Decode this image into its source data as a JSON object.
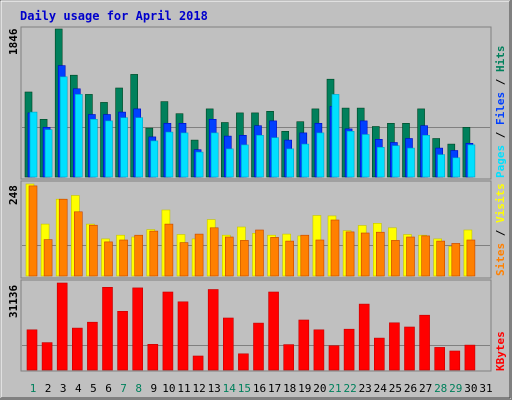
{
  "title": "Daily usage for April 2018",
  "colors": {
    "background": "#c0c0c0",
    "title": "#0000cc",
    "hits": "#00805c",
    "files": "#0040ff",
    "pages": "#00e0ff",
    "visits": "#ffff00",
    "sites": "#ff8000",
    "kbytes": "#ff0000",
    "day_weekend": "#00805c",
    "day_weekday": "#000000"
  },
  "chart_data": [
    {
      "type": "bar",
      "panel": "hits_files_pages",
      "ymax_label": "1846",
      "legend": [
        {
          "label": "Pages",
          "color": "#00e0ff"
        },
        {
          "label": "Files",
          "color": "#0040ff"
        },
        {
          "label": "Hits",
          "color": "#00805c"
        }
      ],
      "categories": [
        "1",
        "2",
        "3",
        "4",
        "5",
        "6",
        "7",
        "8",
        "9",
        "10",
        "11",
        "12",
        "13",
        "14",
        "15",
        "16",
        "17",
        "18",
        "19",
        "20",
        "21",
        "22",
        "23",
        "24",
        "25",
        "26",
        "27",
        "28",
        "29",
        "30",
        "31"
      ],
      "series": [
        {
          "name": "Hits",
          "values": [
            1060,
            720,
            1846,
            1270,
            1030,
            930,
            1110,
            1280,
            610,
            940,
            790,
            460,
            850,
            680,
            800,
            800,
            820,
            570,
            690,
            850,
            1220,
            860,
            860,
            630,
            670,
            670,
            850,
            480,
            410,
            620,
            0
          ]
        },
        {
          "name": "Files",
          "values": [
            800,
            620,
            1390,
            1100,
            780,
            780,
            810,
            850,
            500,
            670,
            670,
            340,
            720,
            510,
            520,
            640,
            700,
            460,
            550,
            670,
            880,
            600,
            700,
            470,
            430,
            480,
            640,
            360,
            330,
            420,
            0
          ]
        },
        {
          "name": "Pages",
          "values": [
            810,
            590,
            1250,
            1030,
            720,
            700,
            740,
            740,
            450,
            560,
            550,
            310,
            550,
            350,
            400,
            520,
            490,
            350,
            410,
            550,
            1030,
            570,
            530,
            370,
            390,
            360,
            520,
            280,
            240,
            400,
            0
          ]
        }
      ]
    },
    {
      "type": "bar",
      "panel": "visits_sites",
      "ymax_label": "248",
      "legend": [
        {
          "label": "Sites",
          "color": "#ff8000"
        },
        {
          "label": "Visits",
          "color": "#ffff00"
        }
      ],
      "categories": [
        "1",
        "2",
        "3",
        "4",
        "5",
        "6",
        "7",
        "8",
        "9",
        "10",
        "11",
        "12",
        "13",
        "14",
        "15",
        "16",
        "17",
        "18",
        "19",
        "20",
        "21",
        "22",
        "23",
        "24",
        "25",
        "26",
        "27",
        "28",
        "29",
        "30",
        "31"
      ],
      "series": [
        {
          "name": "Visits",
          "values": [
            248,
            140,
            207,
            217,
            140,
            100,
            110,
            105,
            125,
            178,
            112,
            100,
            152,
            110,
            132,
            115,
            110,
            113,
            108,
            163,
            162,
            122,
            136,
            142,
            130,
            112,
            110,
            100,
            80,
            124,
            0
          ]
        },
        {
          "name": "Sites",
          "values": [
            243,
            98,
            207,
            173,
            137,
            92,
            97,
            110,
            121,
            140,
            90,
            113,
            130,
            105,
            96,
            124,
            104,
            94,
            110,
            97,
            151,
            119,
            116,
            118,
            96,
            105,
            108,
            94,
            88,
            97,
            0
          ]
        }
      ]
    },
    {
      "type": "bar",
      "panel": "kbytes",
      "ymax_label": "31136",
      "legend": [
        {
          "label": "KBytes",
          "color": "#ff0000"
        }
      ],
      "categories": [
        "1",
        "2",
        "3",
        "4",
        "5",
        "6",
        "7",
        "8",
        "9",
        "10",
        "11",
        "12",
        "13",
        "14",
        "15",
        "16",
        "17",
        "18",
        "19",
        "20",
        "21",
        "22",
        "23",
        "24",
        "25",
        "26",
        "27",
        "28",
        "29",
        "30",
        "31"
      ],
      "series": [
        {
          "name": "KBytes",
          "values": [
            14400,
            9800,
            31136,
            15000,
            17100,
            29600,
            21000,
            29400,
            9200,
            27900,
            24400,
            5000,
            28800,
            18600,
            5800,
            16800,
            27900,
            9100,
            17900,
            14400,
            8700,
            14600,
            23600,
            11400,
            16900,
            15400,
            19600,
            8100,
            6800,
            8900,
            0
          ]
        }
      ]
    }
  ],
  "weekend_days": [
    "1",
    "7",
    "8",
    "14",
    "15",
    "21",
    "22",
    "28",
    "29"
  ]
}
